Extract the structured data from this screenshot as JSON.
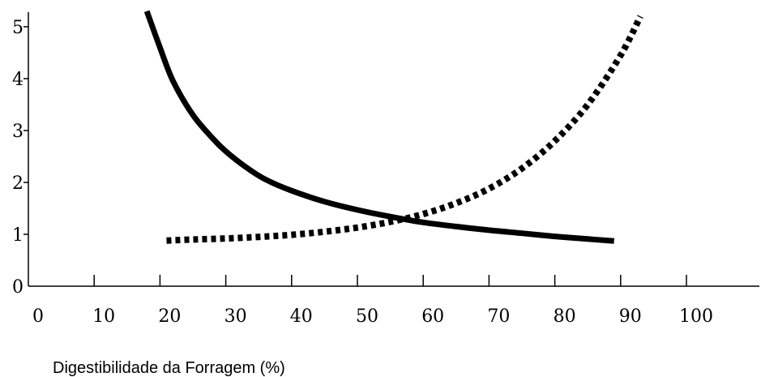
{
  "chart_data": {
    "type": "line",
    "title": "",
    "xlabel": "Digestibilidade da Forragem (%)",
    "ylabel": "",
    "xlim": [
      0,
      100
    ],
    "ylim": [
      0,
      5
    ],
    "x_ticks": [
      "0",
      "10",
      "20",
      "30",
      "40",
      "50",
      "60",
      "70",
      "80",
      "90",
      "100"
    ],
    "y_ticks": [
      "0",
      "1",
      "2",
      "3",
      "4",
      "5"
    ],
    "grid": false,
    "legend": "none",
    "series": [
      {
        "style": "solid",
        "color": "#000000",
        "x": [
          18,
          20,
          22,
          25,
          28,
          30,
          33,
          36,
          40,
          45,
          50,
          55,
          60,
          65,
          70,
          75,
          80,
          85,
          89
        ],
        "y": [
          5.3,
          4.6,
          3.95,
          3.3,
          2.85,
          2.6,
          2.3,
          2.06,
          1.84,
          1.63,
          1.47,
          1.34,
          1.23,
          1.15,
          1.08,
          1.02,
          0.96,
          0.91,
          0.87
        ]
      },
      {
        "style": "dotted",
        "color": "#000000",
        "x": [
          21,
          25,
          30,
          35,
          40,
          45,
          50,
          55,
          60,
          65,
          70,
          75,
          80,
          85,
          90,
          93
        ],
        "y": [
          0.88,
          0.9,
          0.92,
          0.95,
          0.99,
          1.05,
          1.13,
          1.24,
          1.39,
          1.6,
          1.88,
          2.27,
          2.8,
          3.5,
          4.45,
          5.2
        ]
      }
    ]
  }
}
